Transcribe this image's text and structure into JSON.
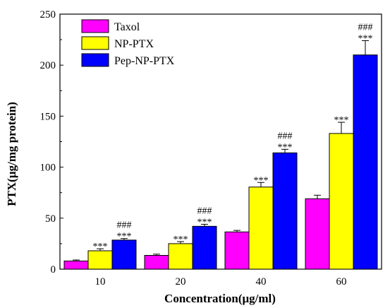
{
  "chart_data": {
    "type": "bar",
    "title": "",
    "xlabel": "Concentration(μg/ml)",
    "ylabel": "PTX(μg/mg protein)",
    "ylim": [
      0,
      250
    ],
    "yticks": [
      "0",
      "50",
      "100",
      "150",
      "200",
      "250"
    ],
    "categories": [
      "10",
      "20",
      "40",
      "60"
    ],
    "grid": false,
    "legend": "top-left",
    "series": [
      {
        "name": "Taxol",
        "color": "#ff00ff",
        "values": [
          8,
          13.5,
          36.5,
          69
        ],
        "errors": [
          1,
          1.2,
          1.5,
          3.5
        ],
        "annotations": [
          "",
          "",
          "",
          ""
        ]
      },
      {
        "name": "NP-PTX",
        "color": "#ffff00",
        "values": [
          18,
          25,
          80.5,
          133
        ],
        "errors": [
          2,
          2,
          4.5,
          11
        ],
        "annotations": [
          "***",
          "***",
          "***",
          "***"
        ]
      },
      {
        "name": "Pep-NP-PTX",
        "color": "#0000ff",
        "values": [
          28.5,
          42,
          114,
          210
        ],
        "errors": [
          1.5,
          2,
          3.5,
          14
        ],
        "annotations": [
          "###\n***",
          "###\n***",
          "###\n***",
          "###\n***"
        ]
      }
    ]
  }
}
